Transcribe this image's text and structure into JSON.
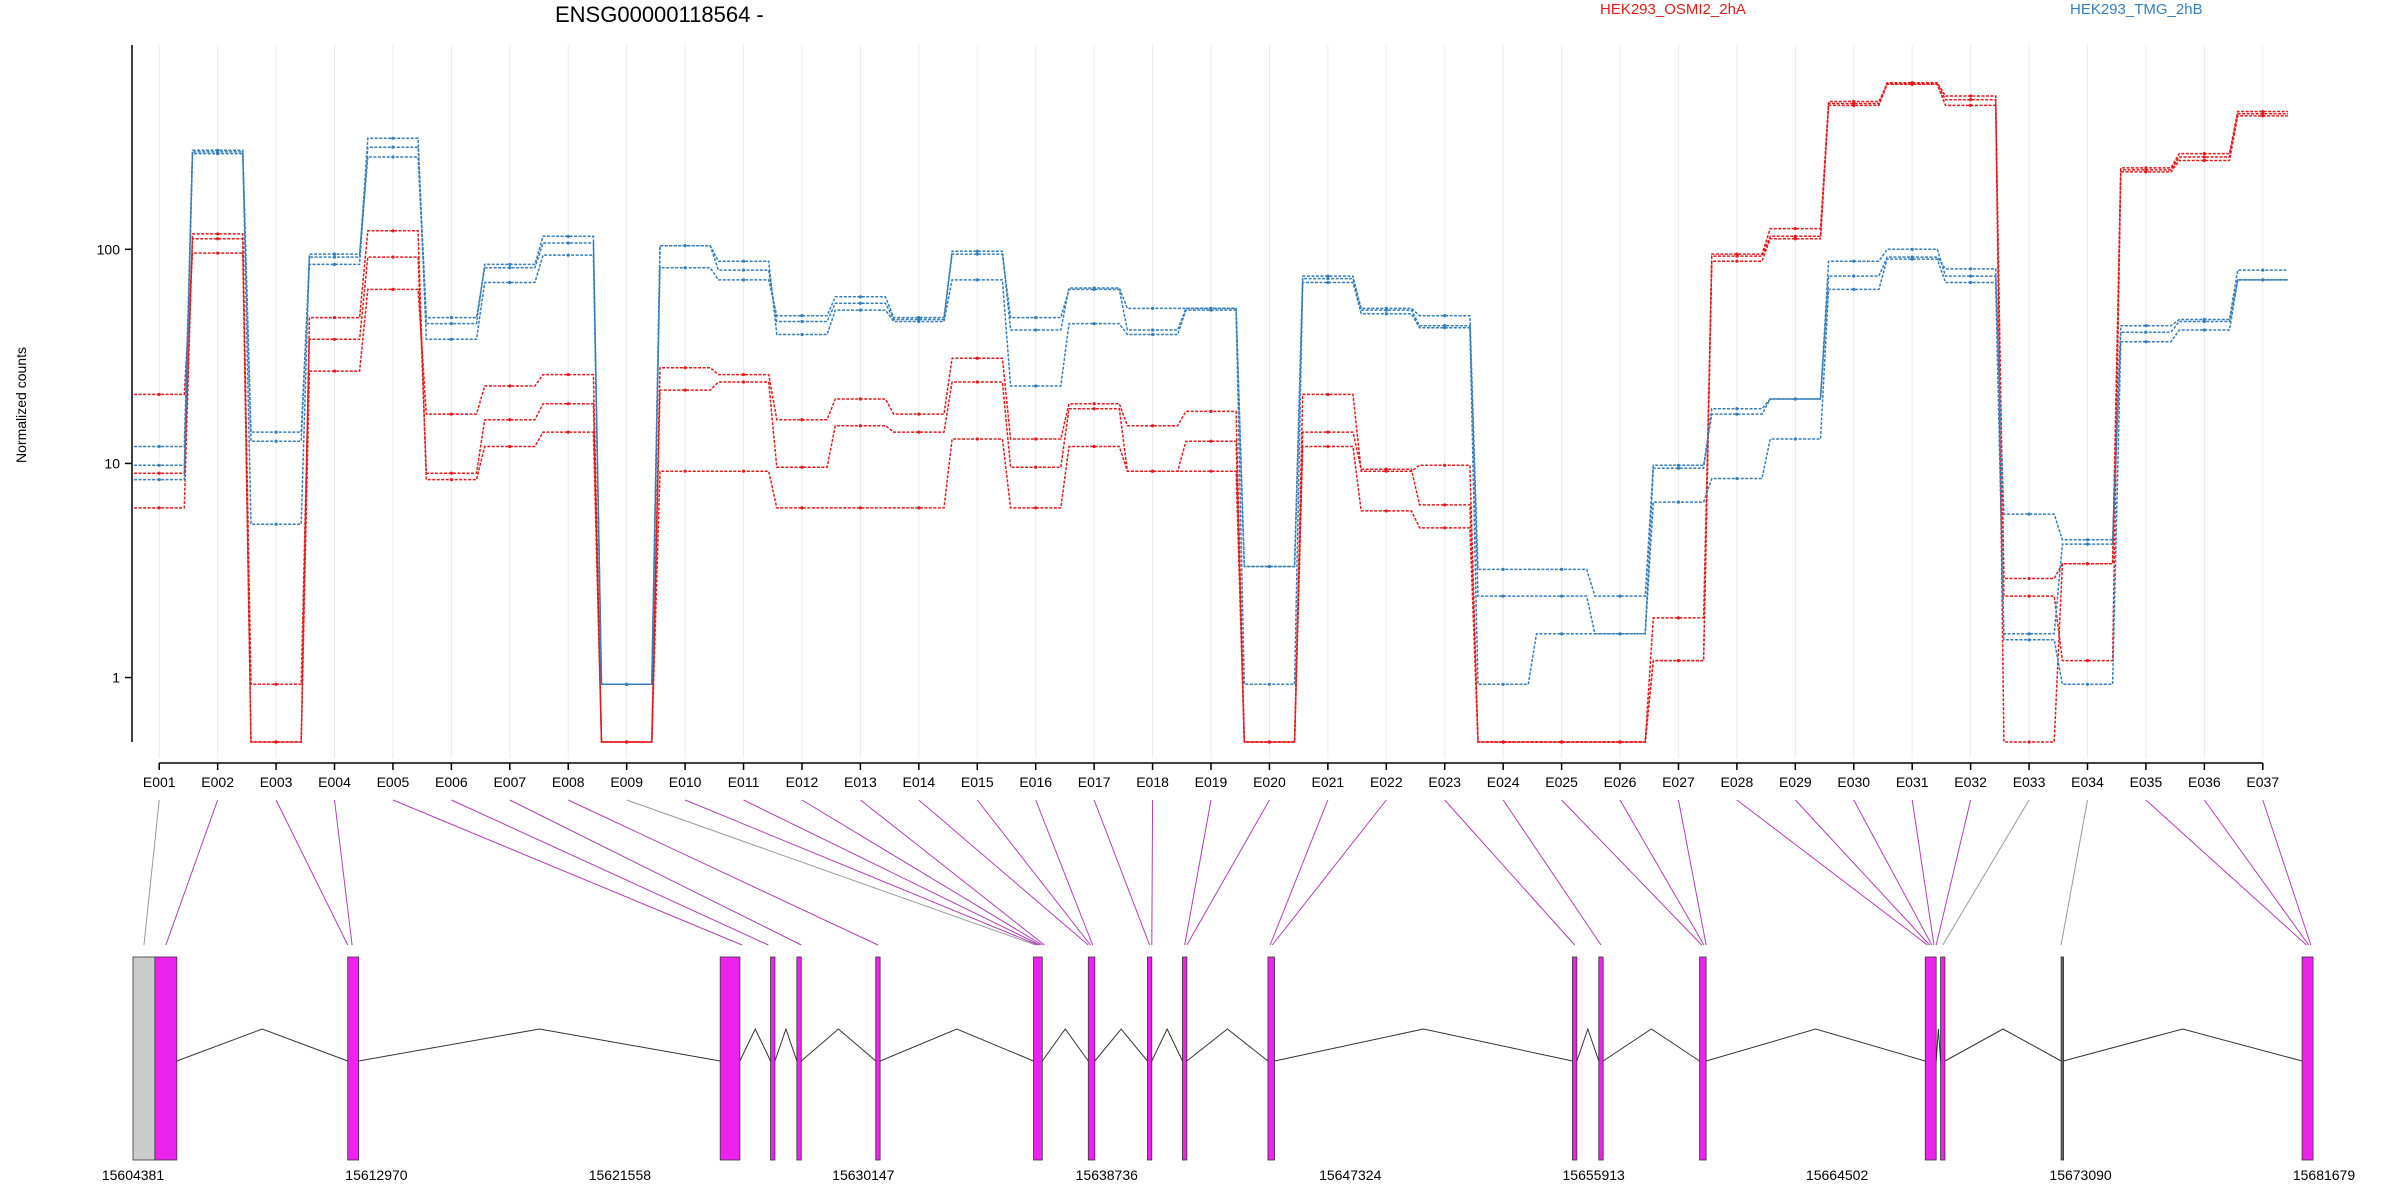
{
  "chart_data": {
    "type": "line",
    "title": "ENSG00000118564 -",
    "ylabel": "Normalized counts",
    "y_scale": "log",
    "ylim": [
      0.5,
      900
    ],
    "y_ticks": [
      1,
      10,
      100
    ],
    "categories": [
      "E001",
      "E002",
      "E003",
      "E004",
      "E005",
      "E006",
      "E007",
      "E008",
      "E009",
      "E010",
      "E011",
      "E012",
      "E013",
      "E014",
      "E015",
      "E016",
      "E017",
      "E018",
      "E019",
      "E020",
      "E021",
      "E022",
      "E023",
      "E024",
      "E025",
      "E026",
      "E027",
      "E028",
      "E029",
      "E030",
      "E031",
      "E032",
      "E033",
      "E034",
      "E035",
      "E036",
      "E037"
    ],
    "legend": [
      {
        "label": "HEK293_OSMI2_2hA",
        "color": "#e41a1c"
      },
      {
        "label": "HEK293_TMG_2hB",
        "color": "#377eb8"
      }
    ],
    "series": [
      {
        "group": "HEK293_OSMI2_2hA",
        "color": "#e41a1c",
        "values": [
          21,
          96,
          0.5,
          27,
          65,
          17,
          23,
          26,
          0.5,
          28,
          26,
          16,
          20,
          17,
          31,
          13,
          19,
          15,
          17.5,
          0.5,
          21,
          9.2,
          9.8,
          0.5,
          0.5,
          0.5,
          1.9,
          88,
          112,
          470,
          590,
          470,
          2.9,
          3.4,
          230,
          260,
          420
        ]
      },
      {
        "group": "HEK293_OSMI2_2hA",
        "color": "#e41a1c",
        "values": [
          9,
          112,
          0.93,
          38,
          92,
          9,
          16,
          19,
          0.5,
          22,
          24,
          9.6,
          15,
          14,
          24,
          9.6,
          18,
          9.2,
          12.7,
          0.5,
          14,
          9.4,
          6.4,
          0.5,
          0.5,
          0.5,
          1.2,
          93,
          115,
          490,
          590,
          500,
          2.4,
          1.2,
          235,
          270,
          430
        ]
      },
      {
        "group": "HEK293_OSMI2_2hA",
        "color": "#e41a1c",
        "values": [
          6.2,
          118,
          0.5,
          48,
          122,
          8.4,
          12,
          14,
          0.5,
          9.2,
          9.2,
          6.2,
          6.2,
          6.2,
          13,
          6.2,
          12,
          9.2,
          9.2,
          0.5,
          12,
          6.0,
          5.0,
          0.5,
          0.5,
          0.5,
          1.2,
          95,
          125,
          480,
          600,
          520,
          0.5,
          3.4,
          240,
          280,
          440
        ]
      },
      {
        "group": "HEK293_TMG_2hB",
        "color": "#377eb8",
        "values": [
          12,
          290,
          14,
          85,
          300,
          48,
          82,
          107,
          0.93,
          104,
          80,
          46,
          56,
          47,
          95,
          48,
          65,
          42,
          53,
          3.3,
          73,
          53,
          49,
          3.2,
          3.2,
          2.4,
          9.8,
          17,
          20,
          75,
          92,
          81,
          1.6,
          4.2,
          44,
          47,
          80
        ]
      },
      {
        "group": "HEK293_TMG_2hB",
        "color": "#377eb8",
        "values": [
          8.4,
          280,
          12.7,
          92,
          330,
          38,
          70,
          94,
          0.93,
          104,
          88,
          40,
          52,
          46,
          72,
          23,
          45,
          40,
          52,
          0.93,
          70,
          50,
          43,
          0.93,
          1.6,
          1.6,
          6.6,
          8.5,
          13,
          65,
          90,
          70,
          1.5,
          0.93,
          37,
          42,
          72
        ]
      },
      {
        "group": "HEK293_TMG_2hB",
        "color": "#377eb8",
        "values": [
          9.8,
          285,
          5.2,
          95,
          270,
          45,
          85,
          115,
          0.93,
          82,
          72,
          49,
          60,
          48,
          98,
          42,
          66,
          53,
          53,
          3.3,
          75,
          52,
          44,
          2.4,
          2.4,
          1.6,
          9.5,
          18,
          20,
          88,
          100,
          75,
          5.8,
          4.4,
          41,
          46,
          72
        ]
      }
    ],
    "gene_axis_ticks": [
      "15604381",
      "15612970",
      "15621558",
      "15630147",
      "15638736",
      "15647324",
      "15655913",
      "15664502",
      "15673090",
      "15681679"
    ]
  }
}
